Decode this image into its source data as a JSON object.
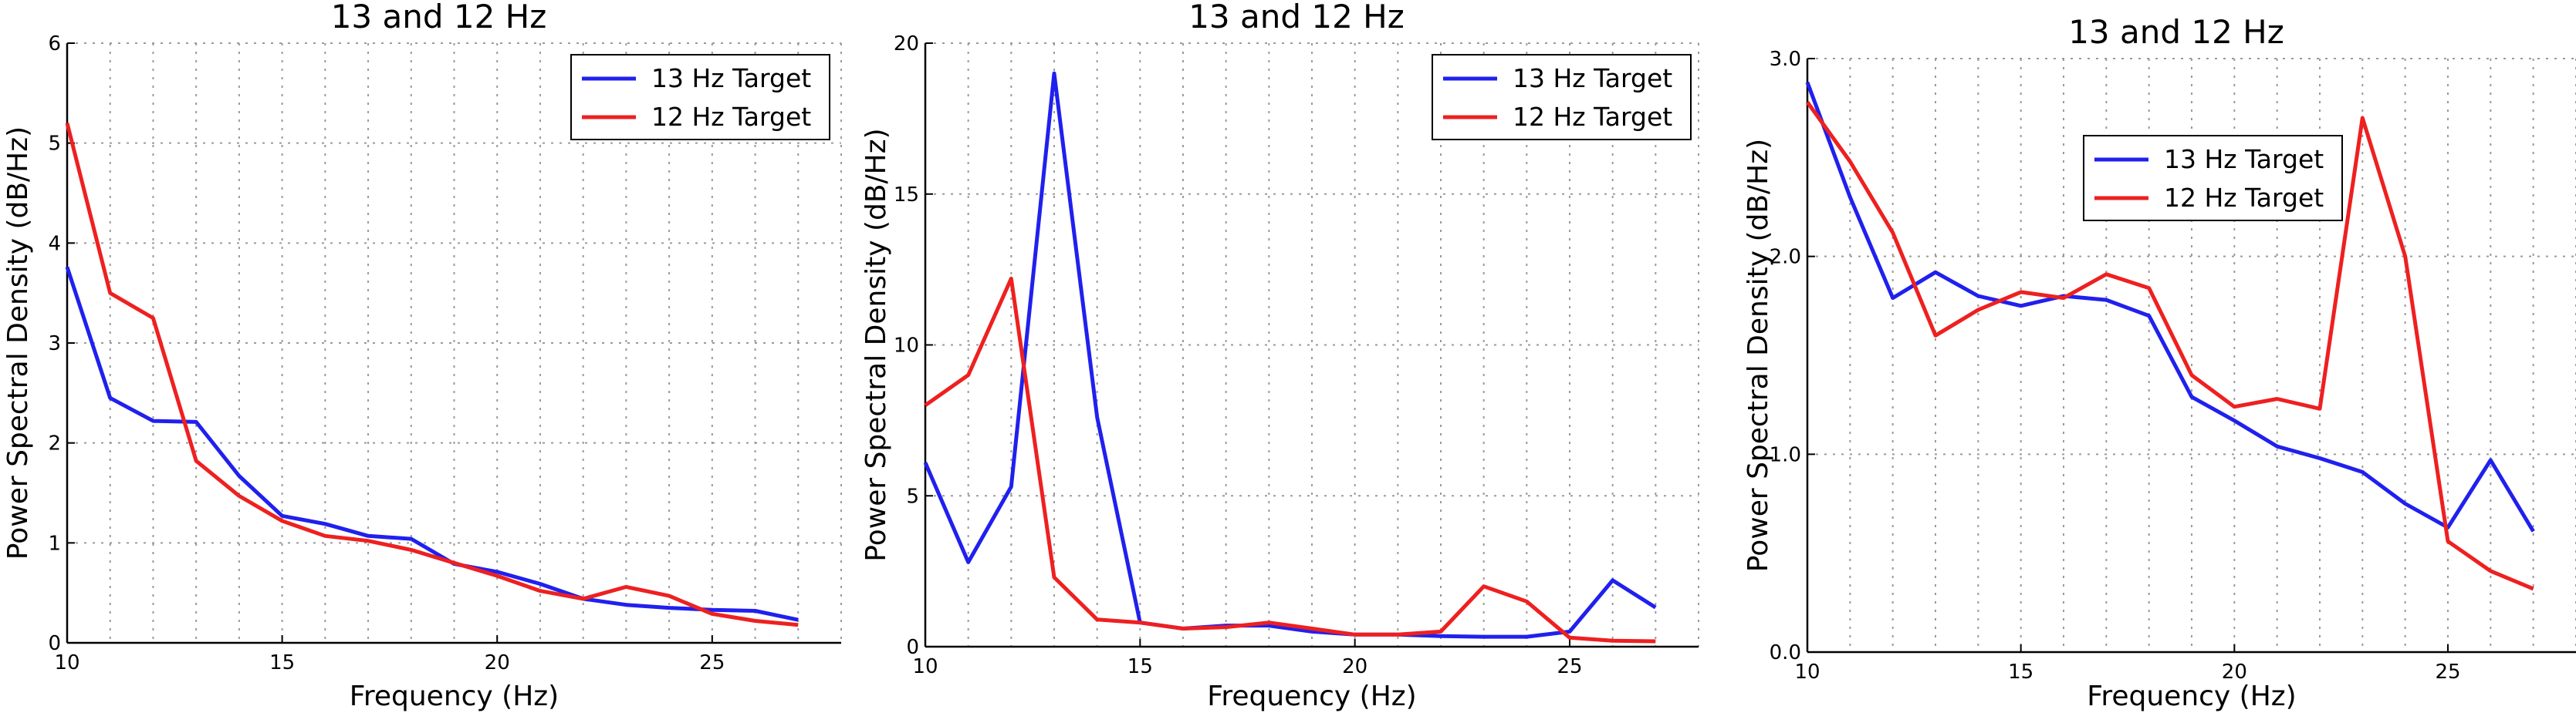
{
  "chart_data": [
    {
      "type": "line",
      "title": "13 and 12 Hz",
      "xlabel": "Frequency (Hz)",
      "ylabel": "Power Spectral Density (dB/Hz)",
      "xlim": [
        10,
        28
      ],
      "ylim": [
        0,
        6
      ],
      "xticks": [
        10,
        15,
        20,
        25
      ],
      "yticks": [
        0,
        1,
        2,
        3,
        4,
        5,
        6
      ],
      "ytick_labels": [
        "0",
        "1",
        "2",
        "3",
        "4",
        "5",
        "6"
      ],
      "grid": true,
      "legend_position": "top-right",
      "x": [
        10,
        11,
        12,
        13,
        14,
        15,
        16,
        17,
        18,
        19,
        20,
        21,
        22,
        23,
        24,
        25,
        26,
        27
      ],
      "series": [
        {
          "name": "13 Hz Target",
          "color": "#2020ee",
          "values": [
            3.76,
            2.45,
            2.22,
            2.21,
            1.67,
            1.27,
            1.19,
            1.07,
            1.04,
            0.79,
            0.71,
            0.59,
            0.44,
            0.38,
            0.35,
            0.33,
            0.32,
            0.23
          ]
        },
        {
          "name": "12 Hz Target",
          "color": "#ee2020",
          "values": [
            5.2,
            3.5,
            3.25,
            1.82,
            1.47,
            1.22,
            1.07,
            1.02,
            0.93,
            0.8,
            0.67,
            0.52,
            0.44,
            0.56,
            0.47,
            0.29,
            0.22,
            0.18
          ]
        }
      ]
    },
    {
      "type": "line",
      "title": "13 and 12 Hz",
      "xlabel": "Frequency (Hz)",
      "ylabel": "Power Spectral Density (dB/Hz)",
      "xlim": [
        10,
        28
      ],
      "ylim": [
        0,
        20
      ],
      "xticks": [
        10,
        15,
        20,
        25
      ],
      "yticks": [
        0,
        5,
        10,
        15,
        20
      ],
      "ytick_labels": [
        "0",
        "5",
        "10",
        "15",
        "20"
      ],
      "grid": true,
      "legend_position": "top-right",
      "x": [
        10,
        11,
        12,
        13,
        14,
        15,
        16,
        17,
        18,
        19,
        20,
        21,
        22,
        23,
        24,
        25,
        26,
        27
      ],
      "series": [
        {
          "name": "13 Hz Target",
          "color": "#2020ee",
          "values": [
            6.1,
            2.8,
            5.3,
            19.0,
            7.6,
            0.8,
            0.6,
            0.7,
            0.7,
            0.5,
            0.4,
            0.4,
            0.35,
            0.33,
            0.33,
            0.5,
            2.2,
            1.3
          ]
        },
        {
          "name": "12 Hz Target",
          "color": "#ee2020",
          "values": [
            8.0,
            9.0,
            12.2,
            2.3,
            0.9,
            0.8,
            0.6,
            0.65,
            0.8,
            0.6,
            0.4,
            0.4,
            0.5,
            2.0,
            1.5,
            0.3,
            0.2,
            0.18
          ]
        }
      ]
    },
    {
      "type": "line",
      "title": "13 and 12 Hz",
      "xlabel": "Frequency (Hz)",
      "ylabel": "Power Spectral Density (dB/Hz)",
      "xlim": [
        10,
        28
      ],
      "ylim": [
        0,
        3
      ],
      "xticks": [
        10,
        15,
        20,
        25
      ],
      "yticks": [
        0,
        1,
        2,
        3
      ],
      "ytick_labels": [
        "0.0",
        "1.0",
        "2.0",
        "3.0"
      ],
      "grid": true,
      "legend_position": "upper-center",
      "x": [
        10,
        11,
        12,
        13,
        14,
        15,
        16,
        17,
        18,
        19,
        20,
        21,
        22,
        23,
        24,
        25,
        26,
        27
      ],
      "series": [
        {
          "name": "13 Hz Target",
          "color": "#2020ee",
          "values": [
            2.88,
            2.3,
            1.79,
            1.92,
            1.8,
            1.75,
            1.8,
            1.78,
            1.7,
            1.29,
            1.17,
            1.04,
            0.98,
            0.91,
            0.75,
            0.63,
            0.97,
            0.61
          ]
        },
        {
          "name": "12 Hz Target",
          "color": "#ee2020",
          "values": [
            2.78,
            2.48,
            2.12,
            1.6,
            1.73,
            1.82,
            1.79,
            1.91,
            1.84,
            1.4,
            1.24,
            1.28,
            1.23,
            2.7,
            2.0,
            0.56,
            0.41,
            0.32
          ]
        }
      ]
    }
  ]
}
